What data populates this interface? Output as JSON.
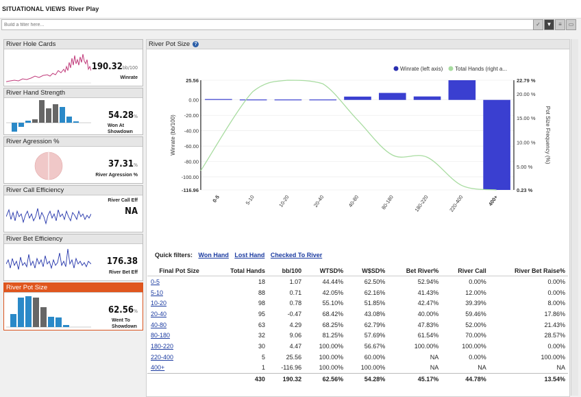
{
  "title": {
    "section": "SITUATIONAL VIEWS",
    "view": "River Play"
  },
  "filter": {
    "placeholder": "Build a filter here..."
  },
  "sidebar": [
    {
      "label": "River Hole Cards",
      "value": "190.32",
      "unit": "bb/100",
      "sub": "Winrate",
      "kind": "line-red"
    },
    {
      "label": "River Hand Strength",
      "value": "54.28",
      "unit": "%",
      "sub": "Won At Showdown",
      "kind": "bars-hs"
    },
    {
      "label": "River Agression %",
      "value": "37.31",
      "unit": "%",
      "sub": "River Agression %",
      "kind": "pie"
    },
    {
      "label": "River Call Efficiency",
      "value": "NA",
      "unit": "",
      "sub": "River Call Eff",
      "kind": "line-blue1"
    },
    {
      "label": "River Bet Efficiency",
      "value": "176.38",
      "unit": "",
      "sub": "River Bet Eff",
      "kind": "line-blue2"
    },
    {
      "label": "River Pot Size",
      "value": "62.56",
      "unit": "%",
      "sub": "Went To Showdown",
      "kind": "bars-ps"
    }
  ],
  "main": {
    "title": "River Pot Size",
    "help": "?"
  },
  "quick_filters": {
    "label": "Quick filters:",
    "items": [
      "Won Hand",
      "Lost Hand",
      "Checked To River"
    ]
  },
  "chart_data": {
    "type": "bar",
    "categories": [
      "0-5",
      "5-10",
      "10-20",
      "20-40",
      "40-80",
      "80-180",
      "180-220",
      "220-400",
      "400+"
    ],
    "series": [
      {
        "name": "Winrate (left axis)",
        "type": "bar",
        "color": "#3a3fd0",
        "values": [
          1.07,
          0.71,
          0.78,
          -0.47,
          4.29,
          9.06,
          4.47,
          25.56,
          -116.96
        ]
      },
      {
        "name": "Total Hands (right a...",
        "type": "line",
        "color": "#a8dca0",
        "values": [
          4.19,
          20.47,
          22.79,
          22.09,
          14.65,
          7.44,
          6.98,
          1.16,
          0.23
        ]
      }
    ],
    "ylabel": "Winrate (bb/100)",
    "y2label": "Pot Size Frequency (%)",
    "ylim": [
      -116.96,
      25.56
    ],
    "y2lim": [
      0.23,
      22.79
    ],
    "yticks": [
      "25.56",
      "0.00",
      "-20.00",
      "-40.00",
      "-60.00",
      "-80.00",
      "-100.00",
      "-116.96"
    ],
    "y2ticks": [
      "22.79 %",
      "20.00 %",
      "15.00 %",
      "10.00 %",
      "5.00 %",
      "0.23 %"
    ],
    "legend": "top-right"
  },
  "table": {
    "columns": [
      "Final Pot Size",
      "Total Hands",
      "bb/100",
      "WTSD%",
      "W$SD%",
      "Bet River%",
      "River Call",
      "River Bet Raise%"
    ],
    "rows": [
      [
        "0-5",
        "18",
        "1.07",
        "44.44%",
        "62.50%",
        "52.94%",
        "0.00%",
        "0.00%"
      ],
      [
        "5-10",
        "88",
        "0.71",
        "42.05%",
        "62.16%",
        "41.43%",
        "12.00%",
        "0.00%"
      ],
      [
        "10-20",
        "98",
        "0.78",
        "55.10%",
        "51.85%",
        "42.47%",
        "39.39%",
        "8.00%"
      ],
      [
        "20-40",
        "95",
        "-0.47",
        "68.42%",
        "43.08%",
        "40.00%",
        "59.46%",
        "17.86%"
      ],
      [
        "40-80",
        "63",
        "4.29",
        "68.25%",
        "62.79%",
        "47.83%",
        "52.00%",
        "21.43%"
      ],
      [
        "80-180",
        "32",
        "9.06",
        "81.25%",
        "57.69%",
        "61.54%",
        "70.00%",
        "28.57%"
      ],
      [
        "180-220",
        "30",
        "4.47",
        "100.00%",
        "56.67%",
        "100.00%",
        "100.00%",
        "0.00%"
      ],
      [
        "220-400",
        "5",
        "25.56",
        "100.00%",
        "60.00%",
        "NA",
        "0.00%",
        "100.00%"
      ],
      [
        "400+",
        "1",
        "-116.96",
        "100.00%",
        "100.00%",
        "NA",
        "NA",
        "NA"
      ]
    ],
    "total": [
      "",
      "430",
      "190.32",
      "62.56%",
      "54.28%",
      "45.17%",
      "44.78%",
      "13.54%"
    ]
  }
}
